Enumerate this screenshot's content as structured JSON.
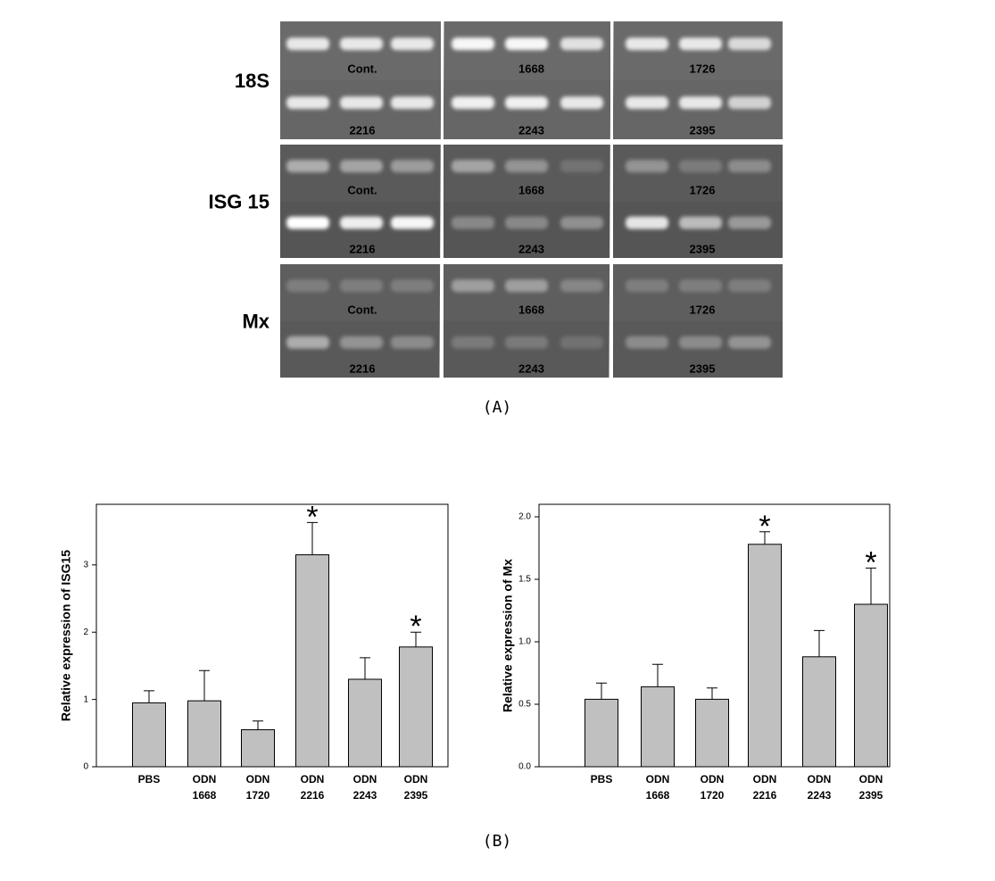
{
  "gel": {
    "panels": [
      {
        "label": "18S",
        "lanes": [
          "Cont.",
          "1668",
          "1726",
          "2216",
          "2243",
          "2395"
        ]
      },
      {
        "label": "ISG 15",
        "lanes": [
          "Cont.",
          "1668",
          "1726",
          "2216",
          "2243",
          "2395"
        ]
      },
      {
        "label": "Mx",
        "lanes": [
          "Cont.",
          "1668",
          "1726",
          "2216",
          "2243",
          "2395"
        ]
      }
    ],
    "caption": "(A)"
  },
  "caption_b": "(B)",
  "chart_data": [
    {
      "type": "bar",
      "ylabel": "Relative expression of ISG15",
      "categories": [
        [
          "PBS"
        ],
        [
          "ODN",
          "1668"
        ],
        [
          "ODN",
          "1720"
        ],
        [
          "ODN",
          "2216"
        ],
        [
          "ODN",
          "2243"
        ],
        [
          "ODN",
          "2395"
        ]
      ],
      "values": [
        0.95,
        0.98,
        0.55,
        3.15,
        1.3,
        1.78
      ],
      "errors": [
        0.18,
        0.45,
        0.13,
        0.48,
        0.32,
        0.22
      ],
      "significance": [
        null,
        null,
        null,
        "*",
        null,
        "*"
      ],
      "color": "#c0c0c0",
      "ylim": [
        0,
        3.9
      ],
      "yticks": [
        0,
        1,
        2,
        3
      ]
    },
    {
      "type": "bar",
      "ylabel": "Relative expression of Mx",
      "categories": [
        [
          "PBS"
        ],
        [
          "ODN",
          "1668"
        ],
        [
          "ODN",
          "1720"
        ],
        [
          "ODN",
          "2216"
        ],
        [
          "ODN",
          "2243"
        ],
        [
          "ODN",
          "2395"
        ]
      ],
      "values": [
        0.54,
        0.64,
        0.54,
        1.78,
        0.88,
        1.3
      ],
      "errors": [
        0.13,
        0.18,
        0.09,
        0.1,
        0.21,
        0.29
      ],
      "significance": [
        null,
        null,
        null,
        "*",
        null,
        "*"
      ],
      "color": "#c0c0c0",
      "ylim": [
        0,
        2.1
      ],
      "yticks": [
        {
          "value": 0,
          "label": "0.0"
        },
        0.5,
        {
          "value": 1,
          "label": "1.0"
        },
        1.5,
        {
          "value": 2,
          "label": "2.0"
        }
      ]
    }
  ]
}
